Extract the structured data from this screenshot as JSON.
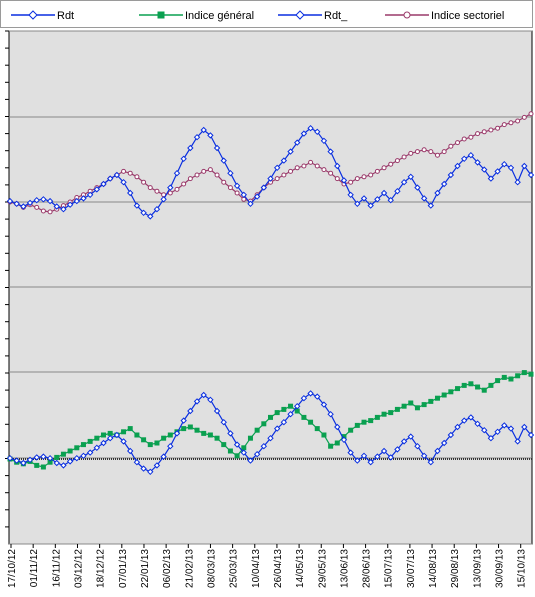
{
  "chart_data": {
    "type": "line",
    "background": "#e0e0e0",
    "grid": true,
    "legend_position": "top",
    "legend": [
      {
        "name": "Rdt",
        "color": "#0a2fe0",
        "marker": "diamond"
      },
      {
        "name": "Indice général",
        "color": "#0aa050",
        "marker": "square"
      },
      {
        "name": "Rdt_",
        "color": "#0a2fe0",
        "marker": "diamond"
      },
      {
        "name": "Indice sectoriel",
        "color": "#9a3a6a",
        "marker": "circle"
      }
    ],
    "x_tick_labels": [
      "17/10/12",
      "01/11/12",
      "16/11/12",
      "03/12/12",
      "18/12/12",
      "07/01/13",
      "22/01/13",
      "06/02/13",
      "21/02/13",
      "08/03/13",
      "25/03/13",
      "10/04/13",
      "26/04/13",
      "14/05/13",
      "29/05/13",
      "13/06/13",
      "28/06/13",
      "15/07/13",
      "30/07/13",
      "14/08/13",
      "29/08/13",
      "13/09/13",
      "30/09/13",
      "15/10/13"
    ],
    "upper_panel": {
      "series": [
        {
          "legend_index": 2,
          "color": "#0a2fe0",
          "values": [
            0.1,
            -0.2,
            -0.5,
            -0.1,
            0.2,
            0.3,
            0.1,
            -0.5,
            -0.8,
            -0.3,
            0.1,
            0.4,
            0.8,
            1.4,
            2.0,
            2.6,
            3.0,
            2.2,
            1.0,
            -0.4,
            -1.2,
            -1.6,
            -0.8,
            0.3,
            1.6,
            3.2,
            4.8,
            6.0,
            7.2,
            8.0,
            7.4,
            6.0,
            4.6,
            3.2,
            1.8,
            0.8,
            -0.2,
            0.6,
            1.6,
            2.6,
            3.8,
            4.6,
            5.6,
            6.6,
            7.6,
            8.2,
            7.8,
            6.8,
            5.6,
            4.0,
            2.4,
            0.8,
            -0.2,
            0.4,
            -0.4,
            0.3,
            1.0,
            0.2,
            1.2,
            2.2,
            2.8,
            1.6,
            0.4,
            -0.4,
            1.0,
            2.0,
            3.0,
            4.0,
            4.8,
            5.2,
            4.4,
            3.6,
            2.6,
            3.4,
            4.2,
            3.8,
            2.2,
            4.0,
            3.0
          ]
        },
        {
          "legend_index": 3,
          "color": "#9a3a6a",
          "values": [
            0.0,
            -0.2,
            -0.6,
            -0.3,
            -0.6,
            -1.0,
            -1.1,
            -0.8,
            -0.4,
            0.0,
            0.5,
            0.8,
            1.2,
            1.6,
            2.0,
            2.6,
            3.0,
            3.4,
            3.2,
            2.8,
            2.2,
            1.6,
            1.2,
            0.8,
            1.0,
            1.4,
            2.0,
            2.6,
            3.0,
            3.4,
            3.6,
            3.0,
            2.2,
            1.6,
            1.0,
            0.3,
            0.1,
            0.8,
            1.6,
            2.2,
            2.6,
            3.0,
            3.4,
            3.8,
            4.0,
            4.4,
            4.0,
            3.6,
            3.2,
            2.6,
            2.0,
            2.2,
            2.6,
            2.8,
            3.0,
            3.4,
            3.8,
            4.2,
            4.6,
            5.0,
            5.4,
            5.6,
            5.8,
            5.6,
            5.2,
            5.6,
            6.2,
            6.6,
            7.0,
            7.2,
            7.6,
            7.8,
            8.0,
            8.2,
            8.6,
            8.8,
            9.0,
            9.4,
            9.8
          ]
        }
      ]
    },
    "lower_panel": {
      "series": [
        {
          "legend_index": 0,
          "color": "#0a2fe0",
          "values": [
            0.1,
            -0.2,
            -0.5,
            -0.1,
            0.2,
            0.3,
            0.1,
            -0.5,
            -0.8,
            -0.3,
            0.1,
            0.4,
            0.8,
            1.4,
            2.0,
            2.6,
            3.0,
            2.2,
            1.0,
            -0.4,
            -1.2,
            -1.6,
            -0.8,
            0.3,
            1.6,
            3.2,
            4.8,
            6.0,
            7.2,
            8.0,
            7.4,
            6.0,
            4.6,
            3.2,
            1.8,
            0.8,
            -0.2,
            0.6,
            1.6,
            2.6,
            3.8,
            4.6,
            5.6,
            6.6,
            7.6,
            8.2,
            7.8,
            6.8,
            5.6,
            4.0,
            2.4,
            0.8,
            -0.2,
            0.4,
            -0.4,
            0.3,
            1.0,
            0.2,
            1.2,
            2.2,
            2.8,
            1.6,
            0.4,
            -0.4,
            1.0,
            2.0,
            3.0,
            4.0,
            4.8,
            5.2,
            4.4,
            3.6,
            2.6,
            3.4,
            4.2,
            3.8,
            2.2,
            4.0,
            3.0
          ]
        },
        {
          "legend_index": 1,
          "color": "#0aa050",
          "values": [
            0.0,
            -0.4,
            -0.6,
            -0.3,
            -0.8,
            -1.0,
            -0.4,
            0.2,
            0.6,
            1.0,
            1.4,
            1.8,
            2.2,
            2.6,
            3.0,
            3.2,
            3.0,
            3.4,
            3.8,
            3.0,
            2.4,
            1.8,
            2.0,
            2.6,
            3.0,
            3.4,
            3.8,
            4.0,
            3.6,
            3.2,
            3.0,
            2.6,
            1.8,
            1.0,
            0.4,
            1.4,
            2.6,
            3.6,
            4.4,
            5.2,
            5.8,
            6.2,
            6.6,
            6.0,
            5.2,
            4.6,
            3.8,
            3.0,
            1.6,
            2.0,
            2.8,
            3.6,
            4.2,
            4.6,
            4.8,
            5.2,
            5.6,
            5.8,
            6.2,
            6.6,
            7.0,
            6.4,
            6.8,
            7.2,
            7.6,
            8.0,
            8.4,
            8.8,
            9.2,
            9.4,
            9.0,
            8.6,
            9.2,
            9.8,
            10.2,
            10.0,
            10.4,
            10.8,
            10.6
          ]
        }
      ]
    }
  }
}
